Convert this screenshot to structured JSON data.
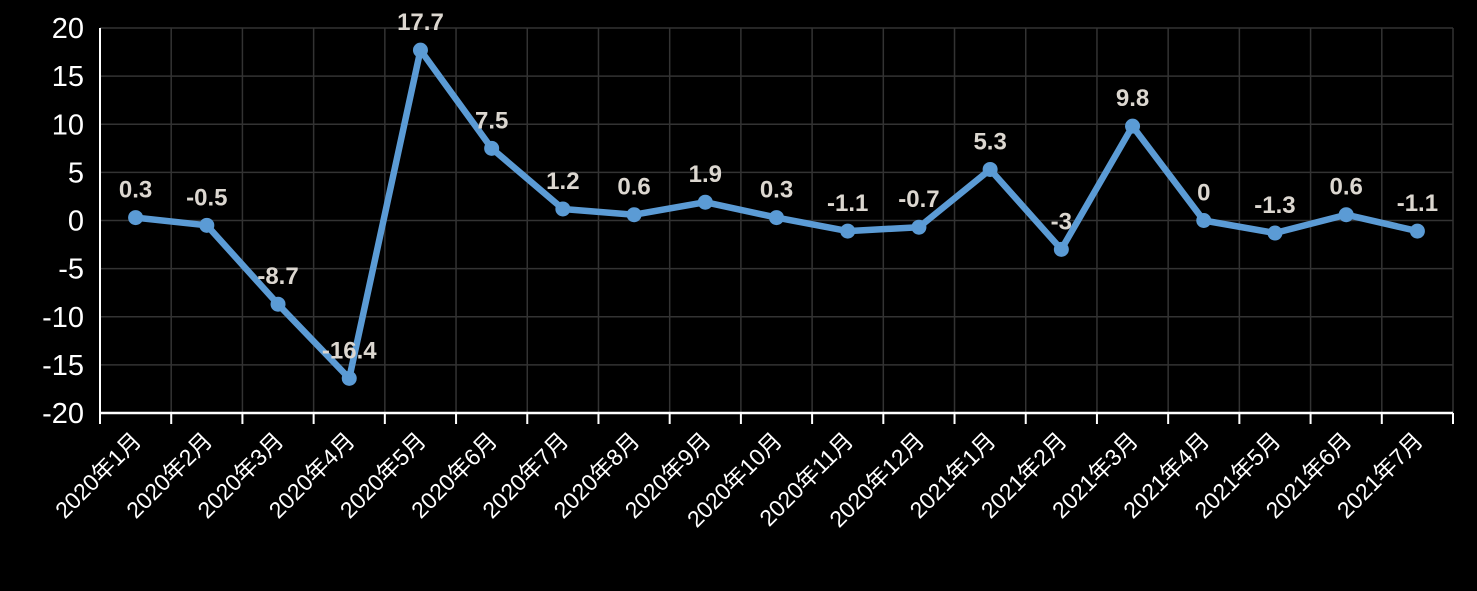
{
  "chart_data": {
    "type": "line",
    "title": "",
    "xlabel": "",
    "ylabel": "",
    "categories": [
      "2020年1月",
      "2020年2月",
      "2020年3月",
      "2020年4月",
      "2020年5月",
      "2020年6月",
      "2020年7月",
      "2020年8月",
      "2020年9月",
      "2020年10月",
      "2020年11月",
      "2020年12月",
      "2021年1月",
      "2021年2月",
      "2021年3月",
      "2021年4月",
      "2021年5月",
      "2021年6月",
      "2021年7月"
    ],
    "values": [
      0.3,
      -0.5,
      -8.7,
      -16.4,
      17.7,
      7.5,
      1.2,
      0.6,
      1.9,
      0.3,
      -1.1,
      -0.7,
      5.3,
      -3,
      9.8,
      0,
      -1.3,
      0.6,
      -1.1
    ],
    "point_labels": [
      "0.3",
      "-0.5",
      "-8.7",
      "-16.4",
      "17.7",
      "7.5",
      "1.2",
      "0.6",
      "1.9",
      "0.3",
      "-1.1",
      "-0.7",
      "5.3",
      "-3",
      "9.8",
      "0",
      "-1.3",
      "0.6",
      "-1.1"
    ],
    "ylim": [
      -20,
      20
    ],
    "ytick_step": 5,
    "ytick_labels": [
      "20",
      "15",
      "10",
      "5",
      "0",
      "-5",
      "-10",
      "-15",
      "-20"
    ],
    "grid": true,
    "legend": "none",
    "x_label_rotation_deg": -45,
    "colors": {
      "background": "#000000",
      "line": "#5B9BD5",
      "marker": "#5B9BD5",
      "gridline": "#333333",
      "axis": "#FFFFFF",
      "axis_tick_label": "#FFFFFF",
      "x_tick_label": "#FFFFFF",
      "data_label": "#DCD7D0"
    }
  }
}
